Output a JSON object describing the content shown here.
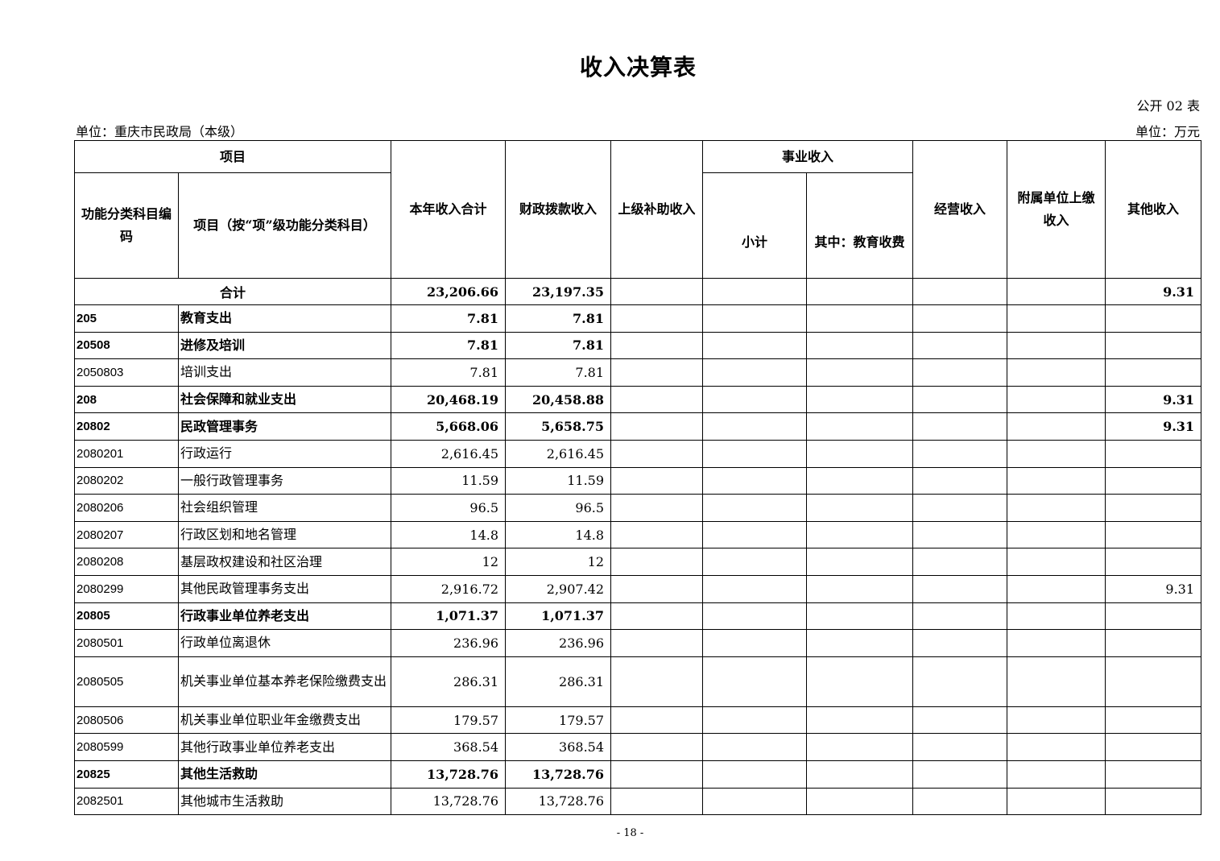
{
  "title": "收入决算表",
  "form_number": "公开 02 表",
  "unit_org": "单位：重庆市民政局（本级）",
  "unit_currency": "单位：万元",
  "headers": {
    "project": "项目",
    "code": "功能分类科目编码",
    "item": "项目（按“项”级功能分类科目）",
    "total_income": "本年收入合计",
    "fiscal": "财政拨款收入",
    "superior_subsidy": "上级补助收入",
    "business_income": "事业收入",
    "subtotal": "小计",
    "edu_fee": "其中：教育收费",
    "operating": "经营收入",
    "affiliated": "附属单位上缴收入",
    "other": "其他收入"
  },
  "total_row": {
    "label": "合计",
    "total": "23,206.66",
    "fiscal": "23,197.35",
    "other": "9.31"
  },
  "rows": [
    {
      "code": "205",
      "name": "教育支出",
      "total": "7.81",
      "fiscal": "7.81",
      "other": "",
      "bold": true
    },
    {
      "code": "20508",
      "name": "进修及培训",
      "total": "7.81",
      "fiscal": "7.81",
      "other": "",
      "bold": true
    },
    {
      "code": "2050803",
      "name": "培训支出",
      "total": "7.81",
      "fiscal": "7.81",
      "other": "",
      "bold": false
    },
    {
      "code": "208",
      "name": "社会保障和就业支出",
      "total": "20,468.19",
      "fiscal": "20,458.88",
      "other": "9.31",
      "bold": true
    },
    {
      "code": "20802",
      "name": "民政管理事务",
      "total": "5,668.06",
      "fiscal": "5,658.75",
      "other": "9.31",
      "bold": true
    },
    {
      "code": "2080201",
      "name": "行政运行",
      "total": "2,616.45",
      "fiscal": "2,616.45",
      "other": "",
      "bold": false
    },
    {
      "code": "2080202",
      "name": "一般行政管理事务",
      "total": "11.59",
      "fiscal": "11.59",
      "other": "",
      "bold": false
    },
    {
      "code": "2080206",
      "name": "社会组织管理",
      "total": "96.5",
      "fiscal": "96.5",
      "other": "",
      "bold": false
    },
    {
      "code": "2080207",
      "name": "行政区划和地名管理",
      "total": "14.8",
      "fiscal": "14.8",
      "other": "",
      "bold": false
    },
    {
      "code": "2080208",
      "name": "基层政权建设和社区治理",
      "total": "12",
      "fiscal": "12",
      "other": "",
      "bold": false
    },
    {
      "code": "2080299",
      "name": "其他民政管理事务支出",
      "total": "2,916.72",
      "fiscal": "2,907.42",
      "other": "9.31",
      "bold": false
    },
    {
      "code": "20805",
      "name": "行政事业单位养老支出",
      "total": "1,071.37",
      "fiscal": "1,071.37",
      "other": "",
      "bold": true
    },
    {
      "code": "2080501",
      "name": "行政单位离退休",
      "total": "236.96",
      "fiscal": "236.96",
      "other": "",
      "bold": false
    },
    {
      "code": "2080505",
      "name": "机关事业单位基本养老保险缴费支出",
      "total": "286.31",
      "fiscal": "286.31",
      "other": "",
      "bold": false
    },
    {
      "code": "2080506",
      "name": "机关事业单位职业年金缴费支出",
      "total": "179.57",
      "fiscal": "179.57",
      "other": "",
      "bold": false
    },
    {
      "code": "2080599",
      "name": "其他行政事业单位养老支出",
      "total": "368.54",
      "fiscal": "368.54",
      "other": "",
      "bold": false
    },
    {
      "code": "20825",
      "name": "其他生活救助",
      "total": "13,728.76",
      "fiscal": "13,728.76",
      "other": "",
      "bold": true
    },
    {
      "code": "2082501",
      "name": "其他城市生活救助",
      "total": "13,728.76",
      "fiscal": "13,728.76",
      "other": "",
      "bold": false
    }
  ],
  "page_number": "- 18 -"
}
